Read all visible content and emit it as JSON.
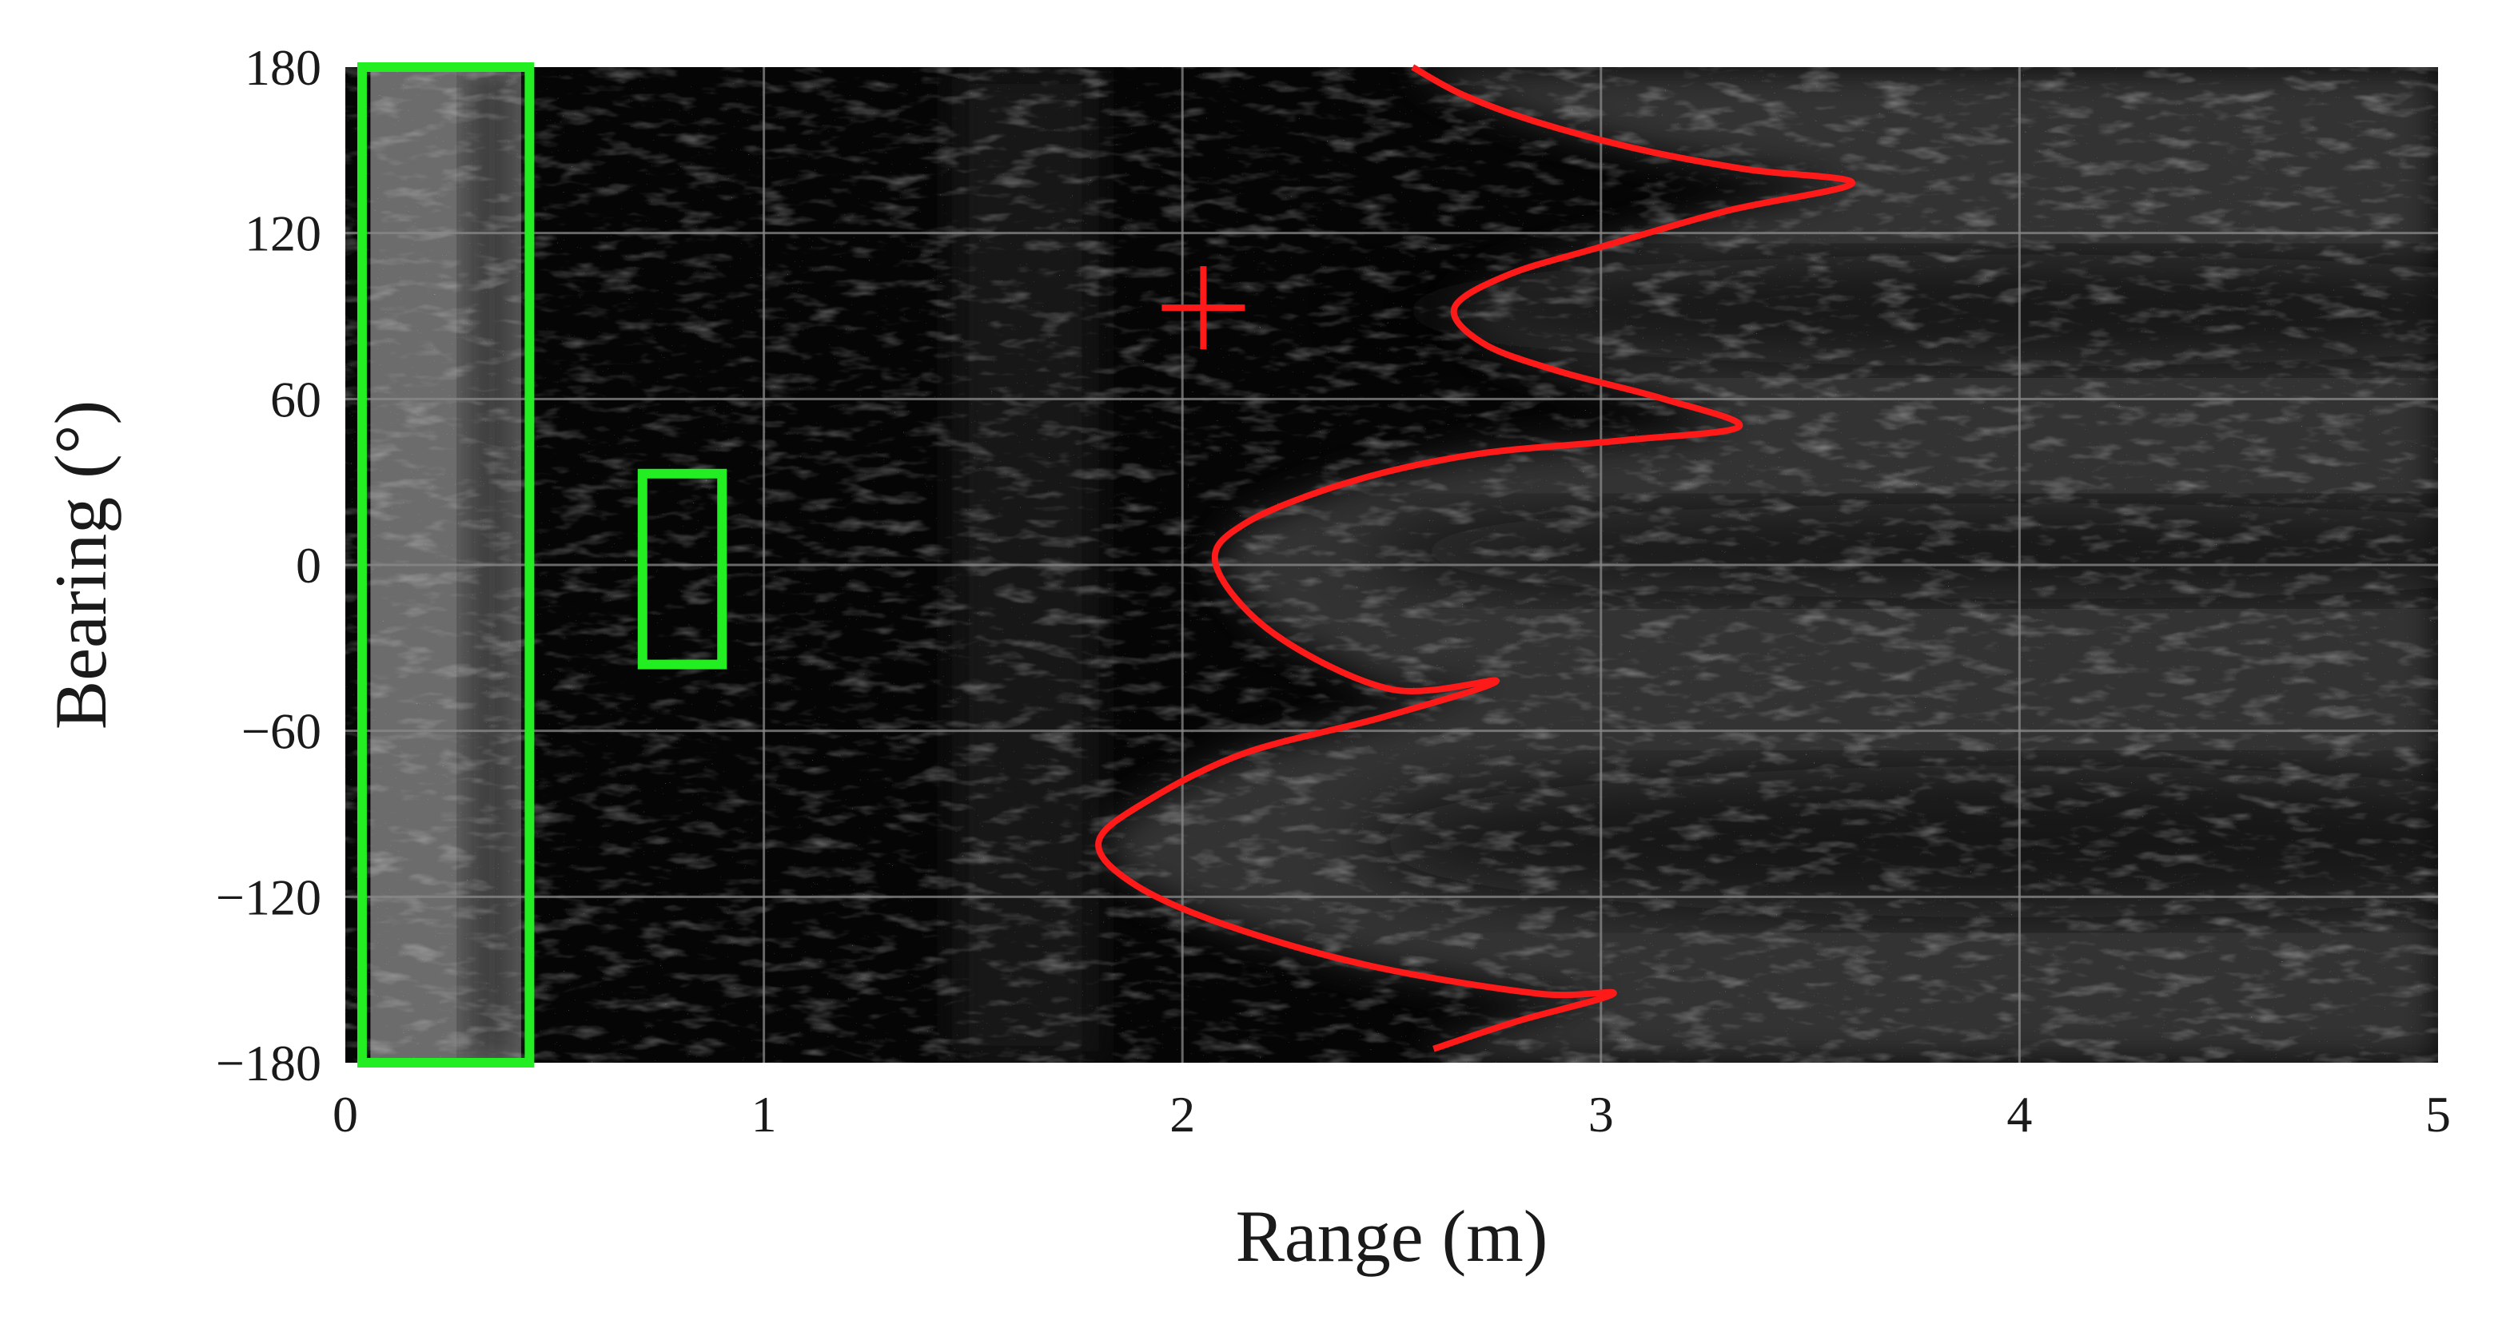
{
  "chart_data": {
    "type": "heatmap",
    "title": "",
    "xlabel": "Range (m)",
    "ylabel": "Bearing (°)",
    "xlim": [
      0,
      5
    ],
    "ylim": [
      -180,
      180
    ],
    "x_ticks": [
      0,
      1,
      2,
      3,
      4,
      5
    ],
    "y_ticks": [
      180,
      120,
      60,
      0,
      -60,
      -120,
      -180
    ],
    "x_tick_labels": [
      "0",
      "1",
      "2",
      "3",
      "4",
      "5"
    ],
    "y_tick_labels": [
      "180",
      "120",
      "60",
      "0",
      "−60",
      "−120",
      "−180"
    ],
    "grid": true,
    "background": "grayscale sonar intensity image",
    "colors": {
      "curve": "#ff1a1a",
      "marker": "#ff1a1a",
      "boxes": "#22ee22",
      "grid": "#8a8a8a"
    },
    "series": [
      {
        "type": "line",
        "x": [
          2.55,
          2.67,
          2.85,
          3.1,
          3.35,
          3.6,
          3.3,
          3.0,
          2.78,
          2.65,
          2.72,
          2.9,
          3.15,
          3.33,
          3.05,
          2.7,
          2.4,
          2.15,
          2.08,
          2.22,
          2.5,
          2.75,
          2.48,
          2.15,
          1.92,
          1.8,
          1.88,
          2.1,
          2.45,
          2.85,
          3.03,
          2.8,
          2.6
        ],
        "y": [
          180,
          170,
          160,
          150,
          143,
          138,
          128,
          115,
          105,
          93,
          80,
          70,
          60,
          50,
          45,
          40,
          30,
          15,
          0,
          -25,
          -45,
          -42,
          -55,
          -68,
          -85,
          -100,
          -115,
          -130,
          -145,
          -155,
          -155,
          -165,
          -175
        ]
      },
      {
        "type": "marker",
        "shape": "plus",
        "x": 2.05,
        "y": 93
      },
      {
        "type": "box",
        "x_range": [
          0.04,
          0.44
        ],
        "y_range": [
          -180,
          180
        ]
      },
      {
        "type": "box",
        "x_range": [
          0.71,
          0.9
        ],
        "y_range": [
          -36,
          33
        ]
      }
    ]
  }
}
